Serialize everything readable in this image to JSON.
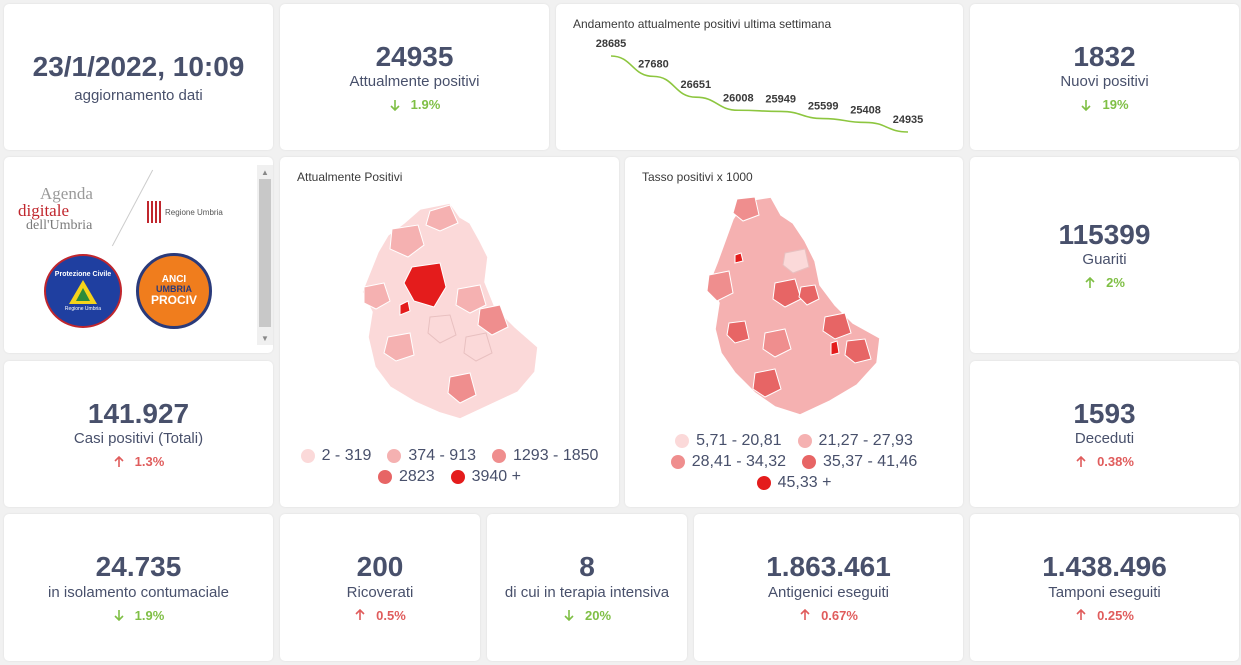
{
  "update": {
    "datetime": "23/1/2022, 10:09",
    "label": "aggiornamento dati"
  },
  "attualmente_positivi": {
    "value": "24935",
    "label": "Attualmente positivi",
    "delta": "1.9%",
    "direction": "down"
  },
  "sparkline": {
    "title": "Andamento attualmente positivi ultima settimana",
    "labels": [
      "28685",
      "27680",
      "26651",
      "26008",
      "25949",
      "25599",
      "25408",
      "24935"
    ]
  },
  "chart_data": {
    "type": "line",
    "title": "Andamento attualmente positivi ultima settimana",
    "series": [
      {
        "values": [
          28685,
          27680,
          26651,
          26008,
          25949,
          25599,
          25408,
          24935
        ]
      }
    ],
    "color": "#8dc63f",
    "grid": false
  },
  "nuovi_positivi": {
    "value": "1832",
    "label": "Nuovi positivi",
    "delta": "19%",
    "direction": "down"
  },
  "logos": {
    "agenda_line1": "Agenda",
    "agenda_line2": "digitale",
    "agenda_line3": "dell'Umbria",
    "regione": "Regione Umbria",
    "protezione": "Protezione Civile",
    "protezione_sub": "Regione Umbria",
    "anci_line1": "ANCI",
    "anci_line2": "UMBRIA",
    "anci_line3": "PROCIV"
  },
  "map_positivi": {
    "title": "Attualmente Positivi",
    "legend": [
      {
        "label": "2 - 319",
        "color": "#fbd9d9"
      },
      {
        "label": "374 - 913",
        "color": "#f5b1b1"
      },
      {
        "label": "1293 - 1850",
        "color": "#ef8e8e"
      },
      {
        "label": "2823",
        "color": "#e76565"
      },
      {
        "label": "3940 +",
        "color": "#e41c1c"
      }
    ]
  },
  "map_tasso": {
    "title": "Tasso positivi x 1000",
    "legend": [
      {
        "label": "5,71 - 20,81",
        "color": "#fbd9d9"
      },
      {
        "label": "21,27 - 27,93",
        "color": "#f5b1b1"
      },
      {
        "label": "28,41 - 34,32",
        "color": "#ef8e8e"
      },
      {
        "label": "35,37 - 41,46",
        "color": "#e76565"
      },
      {
        "label": "45,33 +",
        "color": "#e41c1c"
      }
    ]
  },
  "guariti": {
    "value": "115399",
    "label": "Guariti",
    "delta": "2%",
    "direction": "up-green"
  },
  "casi_totali": {
    "value": "141.927",
    "label": "Casi positivi (Totali)",
    "delta": "1.3%",
    "direction": "up"
  },
  "deceduti": {
    "value": "1593",
    "label": "Deceduti",
    "delta": "0.38%",
    "direction": "up"
  },
  "isolamento": {
    "value": "24.735",
    "label": "in isolamento contumaciale",
    "delta": "1.9%",
    "direction": "down"
  },
  "ricoverati": {
    "value": "200",
    "label": "Ricoverati",
    "delta": "0.5%",
    "direction": "up"
  },
  "terapia": {
    "value": "8",
    "label": "di cui in terapia intensiva",
    "delta": "20%",
    "direction": "down"
  },
  "antigenici": {
    "value": "1.863.461",
    "label": "Antigenici eseguiti",
    "delta": "0.67%",
    "direction": "up"
  },
  "tamponi": {
    "value": "1.438.496",
    "label": "Tamponi eseguiti",
    "delta": "0.25%",
    "direction": "up"
  }
}
